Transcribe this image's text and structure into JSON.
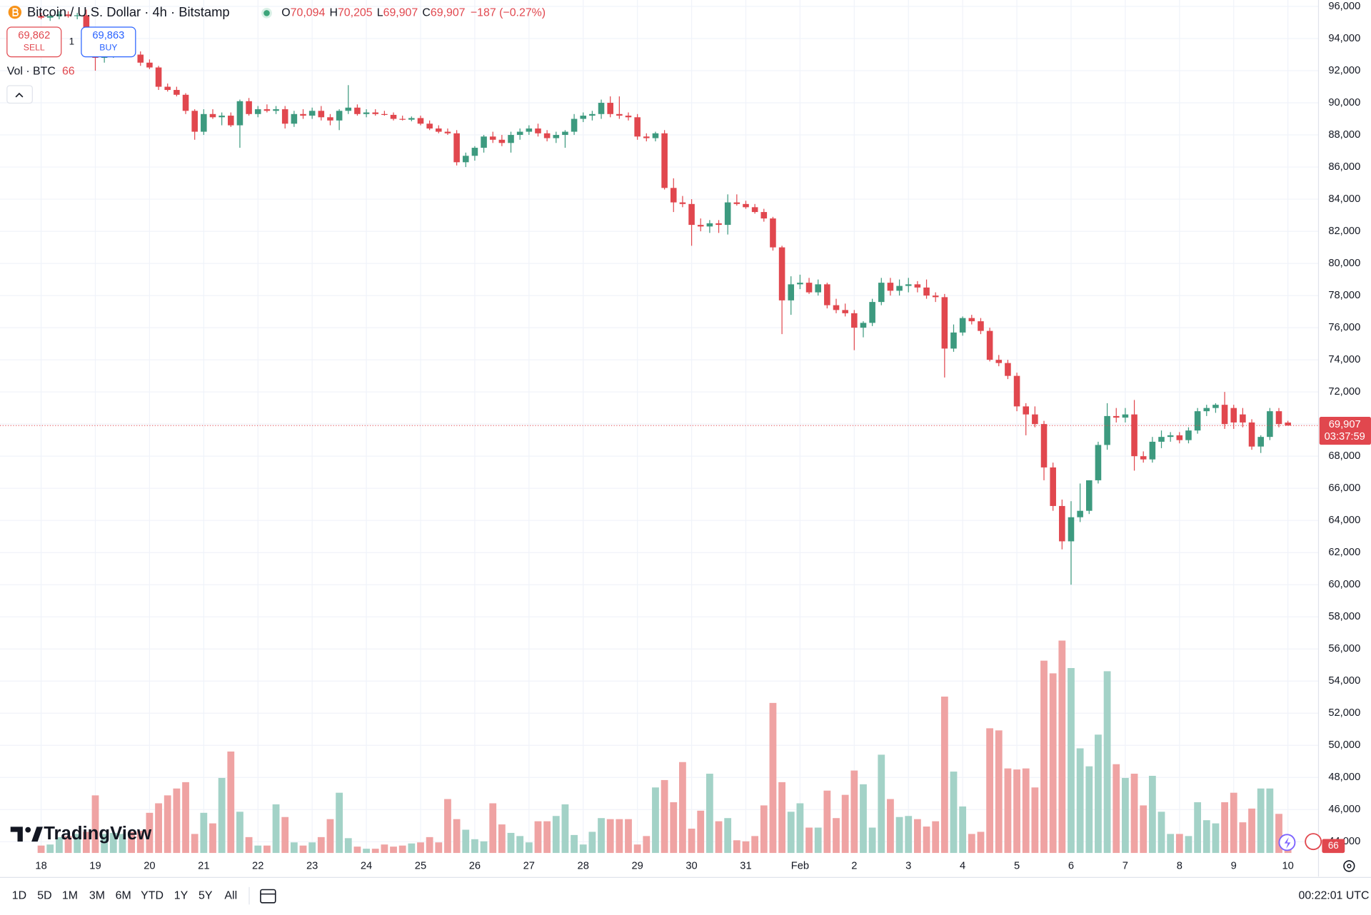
{
  "header": {
    "title": "Bitcoin / U.S. Dollar · 4h · Bitstamp",
    "open_label": "O",
    "open": "70,094",
    "high_label": "H",
    "high": "70,205",
    "low_label": "L",
    "low": "69,907",
    "close_label": "C",
    "close": "69,907",
    "change": "−187 (−0.27%)"
  },
  "trade": {
    "sell_price": "69,862",
    "sell_label": "SELL",
    "quantity": "1",
    "buy_price": "69,863",
    "buy_label": "BUY"
  },
  "volume_legend": {
    "label": "Vol · BTC",
    "value": "66"
  },
  "logo": "TradingView",
  "toolbar": {
    "ranges": [
      "1D",
      "5D",
      "1M",
      "3M",
      "6M",
      "YTD",
      "1Y",
      "5Y",
      "All"
    ],
    "clock": "00:22:01 UTC"
  },
  "chart_data": {
    "type": "candlestick",
    "up_color": "#3d9a7f",
    "down_color": "#e1474e",
    "up_volume_color": "#a3d2c7",
    "down_volume_color": "#efa3a3",
    "grid": true,
    "ylim": [
      43300,
      96400
    ],
    "yticks": [
      {
        "value": 96000,
        "label": "96,000"
      },
      {
        "value": 94000,
        "label": "94,000"
      },
      {
        "value": 92000,
        "label": "92,000"
      },
      {
        "value": 90000,
        "label": "90,000"
      },
      {
        "value": 88000,
        "label": "88,000"
      },
      {
        "value": 86000,
        "label": "86,000"
      },
      {
        "value": 84000,
        "label": "84,000"
      },
      {
        "value": 82000,
        "label": "82,000"
      },
      {
        "value": 80000,
        "label": "80,000"
      },
      {
        "value": 78000,
        "label": "78,000"
      },
      {
        "value": 76000,
        "label": "76,000"
      },
      {
        "value": 74000,
        "label": "74,000"
      },
      {
        "value": 72000,
        "label": "72,000"
      },
      {
        "value": 70000,
        "label": "70,000"
      },
      {
        "value": 68000,
        "label": "68,000"
      },
      {
        "value": 66000,
        "label": "66,000"
      },
      {
        "value": 64000,
        "label": "64,000"
      },
      {
        "value": 62000,
        "label": "62,000"
      },
      {
        "value": 60000,
        "label": "60,000"
      },
      {
        "value": 58000,
        "label": "58,000"
      },
      {
        "value": 56000,
        "label": "56,000"
      },
      {
        "value": 54000,
        "label": "54,000"
      },
      {
        "value": 52000,
        "label": "52,000"
      },
      {
        "value": 50000,
        "label": "50,000"
      },
      {
        "value": 48000,
        "label": "48,000"
      },
      {
        "value": 46000,
        "label": "46,000"
      },
      {
        "value": 44000,
        "label": "44,000"
      }
    ],
    "xticks": [
      {
        "value": 0,
        "label": "18"
      },
      {
        "value": 6,
        "label": "19"
      },
      {
        "value": 12,
        "label": "20"
      },
      {
        "value": 18,
        "label": "21"
      },
      {
        "value": 24,
        "label": "22"
      },
      {
        "value": 30,
        "label": "23"
      },
      {
        "value": 36,
        "label": "24"
      },
      {
        "value": 42,
        "label": "25"
      },
      {
        "value": 48,
        "label": "26"
      },
      {
        "value": 54,
        "label": "27"
      },
      {
        "value": 60,
        "label": "28"
      },
      {
        "value": 66,
        "label": "29"
      },
      {
        "value": 72,
        "label": "30"
      },
      {
        "value": 78,
        "label": "31"
      },
      {
        "value": 84,
        "label": "Feb"
      },
      {
        "value": 90,
        "label": "2"
      },
      {
        "value": 96,
        "label": "3"
      },
      {
        "value": 102,
        "label": "4"
      },
      {
        "value": 108,
        "label": "5"
      },
      {
        "value": 114,
        "label": "6"
      },
      {
        "value": 120,
        "label": "7"
      },
      {
        "value": 126,
        "label": "8"
      },
      {
        "value": 132,
        "label": "9"
      },
      {
        "value": 138,
        "label": "10"
      }
    ],
    "open": [
      95400,
      95300,
      95400,
      95500,
      95400,
      95450,
      94300,
      92800,
      93100,
      93300,
      93500,
      93000,
      92500,
      92200,
      91000,
      90800,
      90500,
      89500,
      88200,
      89300,
      89100,
      89200,
      88600,
      90100,
      89300,
      89600,
      89500,
      89600,
      88700,
      89300,
      89200,
      89500,
      89100,
      88900,
      89500,
      89700,
      89300,
      89400,
      89300,
      89250,
      89000,
      88950,
      89050,
      88700,
      88400,
      88200,
      88100,
      86300,
      86700,
      87200,
      87900,
      87700,
      87500,
      88000,
      88200,
      88400,
      88100,
      87800,
      88000,
      88200,
      89000,
      89200,
      89300,
      90000,
      89300,
      89200,
      89100,
      87900,
      87800,
      88100,
      84700,
      83800,
      83700,
      82400,
      82300,
      82500,
      82400,
      83800,
      83700,
      83500,
      83200,
      82800,
      81000,
      77700,
      78700,
      78800,
      78200,
      78700,
      77400,
      77100,
      76900,
      76000,
      76300,
      77600,
      78800,
      78300,
      78600,
      78700,
      78500,
      78000,
      77900,
      74700,
      75700,
      76600,
      76400,
      75800,
      74000,
      73800,
      73000,
      71100,
      70600,
      70000,
      67300,
      64900,
      62700,
      64200,
      64600,
      66500,
      68700,
      70500,
      70400,
      70600,
      68000,
      67800,
      68900,
      69200,
      69300,
      69000,
      69600,
      70800,
      71000,
      71200,
      71000,
      70600,
      70100,
      68600,
      69200,
      70800,
      70094
    ],
    "high": [
      95600,
      95500,
      95700,
      95700,
      95600,
      95800,
      94400,
      93300,
      93500,
      93700,
      93700,
      93200,
      92700,
      92300,
      91200,
      91000,
      90600,
      89600,
      89600,
      89600,
      89400,
      89400,
      90200,
      90300,
      89800,
      89900,
      89800,
      89800,
      89500,
      89600,
      89700,
      89800,
      89300,
      89600,
      91100,
      89900,
      89600,
      89600,
      89500,
      89400,
      89200,
      89150,
      89200,
      88900,
      88600,
      88400,
      88300,
      86900,
      87300,
      88000,
      88200,
      88000,
      88200,
      88400,
      88600,
      88700,
      88300,
      88200,
      88300,
      89300,
      89400,
      89500,
      90200,
      90400,
      90400,
      89400,
      89300,
      88100,
      88200,
      88300,
      85300,
      84200,
      84000,
      82800,
      82700,
      82700,
      84300,
      84300,
      83900,
      83700,
      83400,
      82900,
      81100,
      79200,
      79300,
      79100,
      79000,
      78800,
      77800,
      77500,
      77100,
      76400,
      77800,
      79100,
      79100,
      79000,
      79100,
      78900,
      79000,
      78200,
      78100,
      76200,
      76700,
      76800,
      76600,
      76000,
      74300,
      74000,
      73200,
      71300,
      71100,
      70200,
      67600,
      65300,
      65200,
      66300,
      66500,
      68900,
      71300,
      71000,
      71000,
      71500,
      68300,
      69200,
      69600,
      69500,
      69500,
      69800,
      71000,
      71200,
      71300,
      72000,
      71200,
      71000,
      70300,
      69300,
      71000,
      71000,
      70205
    ],
    "low": [
      95200,
      95100,
      95200,
      95300,
      95200,
      93800,
      92000,
      92500,
      92800,
      93000,
      92900,
      92300,
      92100,
      90800,
      90700,
      90400,
      89300,
      87700,
      88000,
      89000,
      88600,
      88500,
      87200,
      89200,
      89100,
      89400,
      89300,
      88400,
      88500,
      89000,
      89000,
      88900,
      88600,
      88300,
      89300,
      89200,
      89100,
      89200,
      89200,
      88900,
      88900,
      88850,
      88600,
      88300,
      88100,
      88000,
      86100,
      86000,
      86400,
      86900,
      87500,
      87300,
      86900,
      87700,
      88000,
      87900,
      87600,
      87500,
      87200,
      88000,
      88800,
      88900,
      89000,
      89100,
      89000,
      88900,
      87700,
      87600,
      87600,
      84600,
      83200,
      83500,
      81100,
      82000,
      81900,
      81900,
      81800,
      83600,
      83400,
      83100,
      82600,
      80800,
      75600,
      76800,
      78400,
      78100,
      78000,
      77200,
      76900,
      76700,
      74600,
      75400,
      76100,
      77400,
      78000,
      78000,
      78200,
      78200,
      77800,
      77600,
      72900,
      74500,
      75500,
      76200,
      75600,
      73900,
      73600,
      72800,
      70800,
      69300,
      69800,
      66500,
      64600,
      62200,
      60000,
      63900,
      64400,
      66300,
      68400,
      70100,
      70100,
      67100,
      67600,
      67600,
      68500,
      68900,
      68800,
      68800,
      69400,
      70500,
      70700,
      69700,
      69700,
      69800,
      68400,
      68200,
      69000,
      69800,
      69907
    ],
    "close": [
      95300,
      95400,
      95500,
      95400,
      95450,
      94300,
      92800,
      93100,
      93300,
      93500,
      93000,
      92500,
      92200,
      91000,
      90800,
      90500,
      89500,
      88200,
      89300,
      89100,
      89200,
      88600,
      90100,
      89300,
      89600,
      89500,
      89600,
      88700,
      89300,
      89200,
      89500,
      89100,
      88900,
      89500,
      89700,
      89300,
      89400,
      89300,
      89250,
      89000,
      88950,
      89050,
      88700,
      88400,
      88200,
      88100,
      86300,
      86700,
      87200,
      87900,
      87700,
      87500,
      88000,
      88200,
      88400,
      88100,
      87800,
      88000,
      88200,
      89000,
      89200,
      89300,
      90000,
      89300,
      89200,
      89100,
      87900,
      87800,
      88100,
      84700,
      83800,
      83700,
      82400,
      82300,
      82500,
      82400,
      83800,
      83700,
      83500,
      83200,
      82800,
      81000,
      77700,
      78700,
      78800,
      78200,
      78700,
      77400,
      77100,
      76900,
      76000,
      76300,
      77600,
      78800,
      78300,
      78600,
      78700,
      78500,
      78000,
      77900,
      74700,
      75700,
      76600,
      76400,
      75800,
      74000,
      73800,
      73000,
      71100,
      70600,
      70000,
      67300,
      64900,
      62700,
      64200,
      64600,
      66500,
      68700,
      70500,
      70400,
      70600,
      68000,
      67800,
      68900,
      69200,
      69300,
      69000,
      69600,
      70800,
      71000,
      71200,
      70000,
      70100,
      70100,
      68600,
      69200,
      70800,
      70000,
      69907
    ],
    "volume": [
      70,
      80,
      150,
      160,
      180,
      200,
      545,
      180,
      190,
      180,
      200,
      210,
      380,
      470,
      545,
      610,
      670,
      180,
      380,
      280,
      710,
      960,
      390,
      150,
      70,
      70,
      460,
      340,
      100,
      70,
      100,
      150,
      320,
      570,
      140,
      60,
      40,
      40,
      80,
      60,
      70,
      90,
      100,
      150,
      100,
      510,
      320,
      220,
      130,
      110,
      470,
      270,
      190,
      160,
      100,
      300,
      300,
      350,
      460,
      170,
      80,
      200,
      330,
      320,
      320,
      320,
      80,
      160,
      620,
      690,
      480,
      860,
      230,
      400,
      750,
      300,
      330,
      120,
      110,
      160,
      450,
      1420,
      670,
      390,
      470,
      240,
      240,
      590,
      330,
      550,
      780,
      650,
      240,
      930,
      510,
      340,
      350,
      320,
      250,
      300,
      1480,
      770,
      440,
      180,
      200,
      1180,
      1160,
      800,
      790,
      800,
      620,
      1820,
      1700,
      2010,
      1750,
      990,
      820,
      1120,
      1720,
      840,
      710,
      750,
      450,
      730,
      390,
      180,
      180,
      160,
      480,
      310,
      280,
      480,
      570,
      290,
      420,
      610,
      610,
      370,
      66
    ],
    "last_price_label": "69,907",
    "countdown": "03:37:59",
    "last_volume_label": "66"
  }
}
